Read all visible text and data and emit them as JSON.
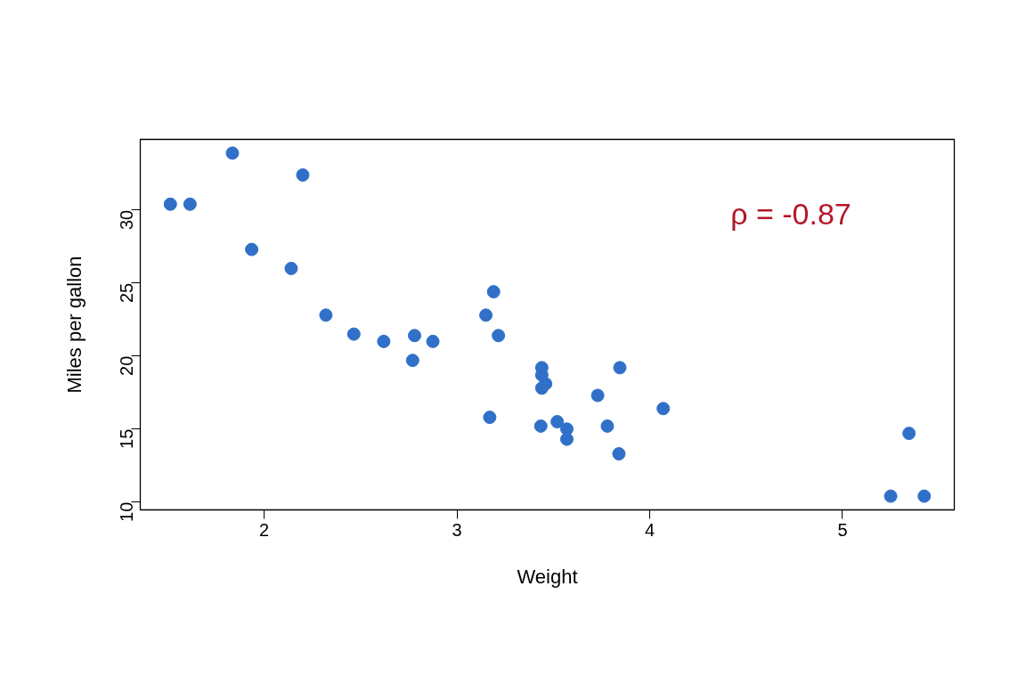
{
  "chart_data": {
    "type": "scatter",
    "xlabel": "Weight",
    "ylabel": "Miles per gallon",
    "annotations": [
      "ρ = -0.87"
    ],
    "x": [
      2.62,
      2.875,
      2.32,
      3.215,
      3.44,
      3.46,
      3.57,
      3.19,
      3.15,
      3.44,
      3.44,
      4.07,
      3.73,
      3.78,
      5.25,
      5.424,
      5.345,
      2.2,
      1.615,
      1.835,
      2.465,
      3.52,
      3.435,
      3.84,
      3.845,
      1.935,
      2.14,
      1.513,
      3.17,
      2.77,
      3.57,
      2.78
    ],
    "series": [
      {
        "color": "#3070c8",
        "values": [
          21.0,
          21.0,
          22.8,
          21.4,
          18.7,
          18.1,
          14.3,
          24.4,
          22.8,
          19.2,
          17.8,
          16.4,
          17.3,
          15.2,
          10.4,
          10.4,
          14.7,
          32.4,
          30.4,
          33.9,
          21.5,
          15.5,
          15.2,
          13.3,
          19.2,
          27.3,
          26.0,
          30.4,
          15.8,
          19.7,
          15.0,
          21.4
        ]
      }
    ],
    "xlim": [
      1.357,
      5.58
    ],
    "ylim": [
      9.46,
      34.84
    ],
    "xticks": [
      2,
      3,
      4,
      5
    ],
    "yticks": [
      10,
      15,
      20,
      25,
      30
    ],
    "marker": "circle",
    "grid": false
  }
}
